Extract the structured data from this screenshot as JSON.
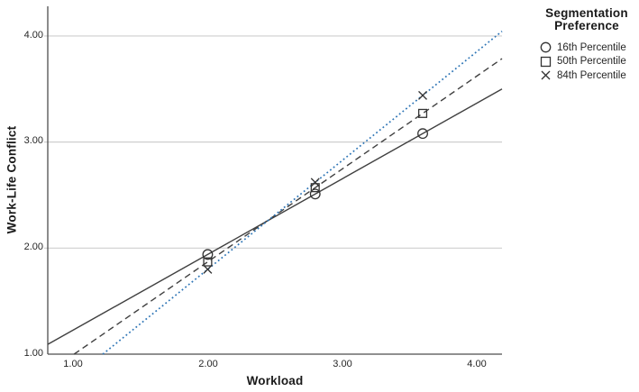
{
  "axes": {
    "x": {
      "label": "Workload",
      "ticks": [
        "1.00",
        "2.00",
        "3.00",
        "4.00"
      ]
    },
    "y": {
      "label": "Work-Life Conflict",
      "ticks": [
        "1.00",
        "2.00",
        "3.00",
        "4.00"
      ]
    }
  },
  "legend": {
    "title_line1": "Segmentation",
    "title_line2": "Preference",
    "items": [
      {
        "marker": "circle",
        "label": "16th Percentile"
      },
      {
        "marker": "square",
        "label": "50th Percentile"
      },
      {
        "marker": "x",
        "label": "84th Percentile"
      }
    ]
  },
  "chart_data": {
    "type": "line",
    "title": "",
    "xlabel": "Workload",
    "ylabel": "Work-Life Conflict",
    "xlim": [
      0.81,
      4.19
    ],
    "ylim": [
      1.0,
      4.28
    ],
    "x_ticks": [
      1,
      2,
      3,
      4
    ],
    "y_ticks": [
      1,
      2,
      3,
      4
    ],
    "grid": "horizontal-y-only",
    "legend_position": "right",
    "legend_title": "Segmentation Preference",
    "x": [
      2.0,
      2.8,
      3.6
    ],
    "series": [
      {
        "name": "16th Percentile",
        "marker": "circle",
        "line": "solid",
        "color": "#404040",
        "slope": 0.7125,
        "intercept": 0.515,
        "values": [
          1.94,
          2.51,
          3.08
        ]
      },
      {
        "name": "50th Percentile",
        "marker": "square",
        "line": "dashed",
        "color": "#404040",
        "slope": 0.875,
        "intercept": 0.12,
        "values": [
          1.87,
          2.57,
          3.27
        ]
      },
      {
        "name": "84th Percentile",
        "marker": "x",
        "line": "dotted",
        "color": "#2e75b6",
        "slope": 1.025,
        "intercept": -0.25,
        "values": [
          1.8,
          2.62,
          3.44
        ]
      }
    ],
    "colors": {
      "axis": "#4d4d4d",
      "grid": "#cfcfcf",
      "marker": "#333333",
      "text": "#262626"
    }
  }
}
